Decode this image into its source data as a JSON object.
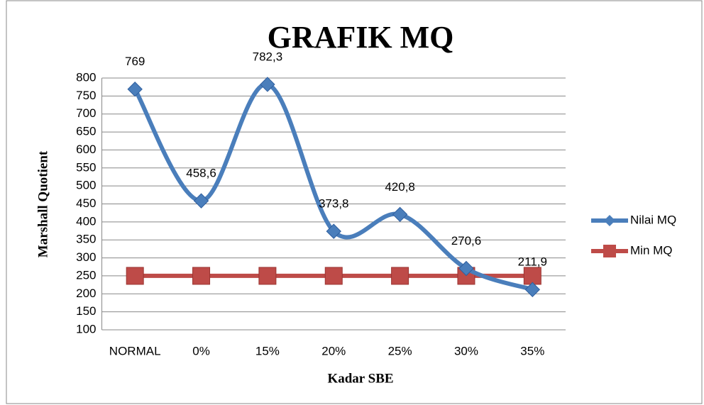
{
  "chart_data": {
    "type": "line",
    "title": "GRAFIK MQ",
    "x_label": "Kadar SBE",
    "y_label": "Marshall Quotient",
    "categories": [
      "NORMAL",
      "0%",
      "15%",
      "20%",
      "25%",
      "30%",
      "35%"
    ],
    "series": [
      {
        "name": "Nilai MQ",
        "color": "#4a7ebb",
        "marker": "diamond",
        "values": [
          769,
          458.6,
          782.3,
          373.8,
          420.8,
          270.6,
          211.9
        ],
        "value_labels": [
          "769",
          "458,6",
          "782,3",
          "373,8",
          "420,8",
          "270,6",
          "211,9"
        ]
      },
      {
        "name": "Min MQ",
        "color": "#be4b48",
        "marker": "square",
        "values": [
          250,
          250,
          250,
          250,
          250,
          250,
          250
        ]
      }
    ],
    "ylim": [
      100,
      800
    ],
    "yticks": [
      100,
      150,
      200,
      250,
      300,
      350,
      400,
      450,
      500,
      550,
      600,
      650,
      700,
      750,
      800
    ],
    "grid": true,
    "smooth": true,
    "legend": "right"
  }
}
